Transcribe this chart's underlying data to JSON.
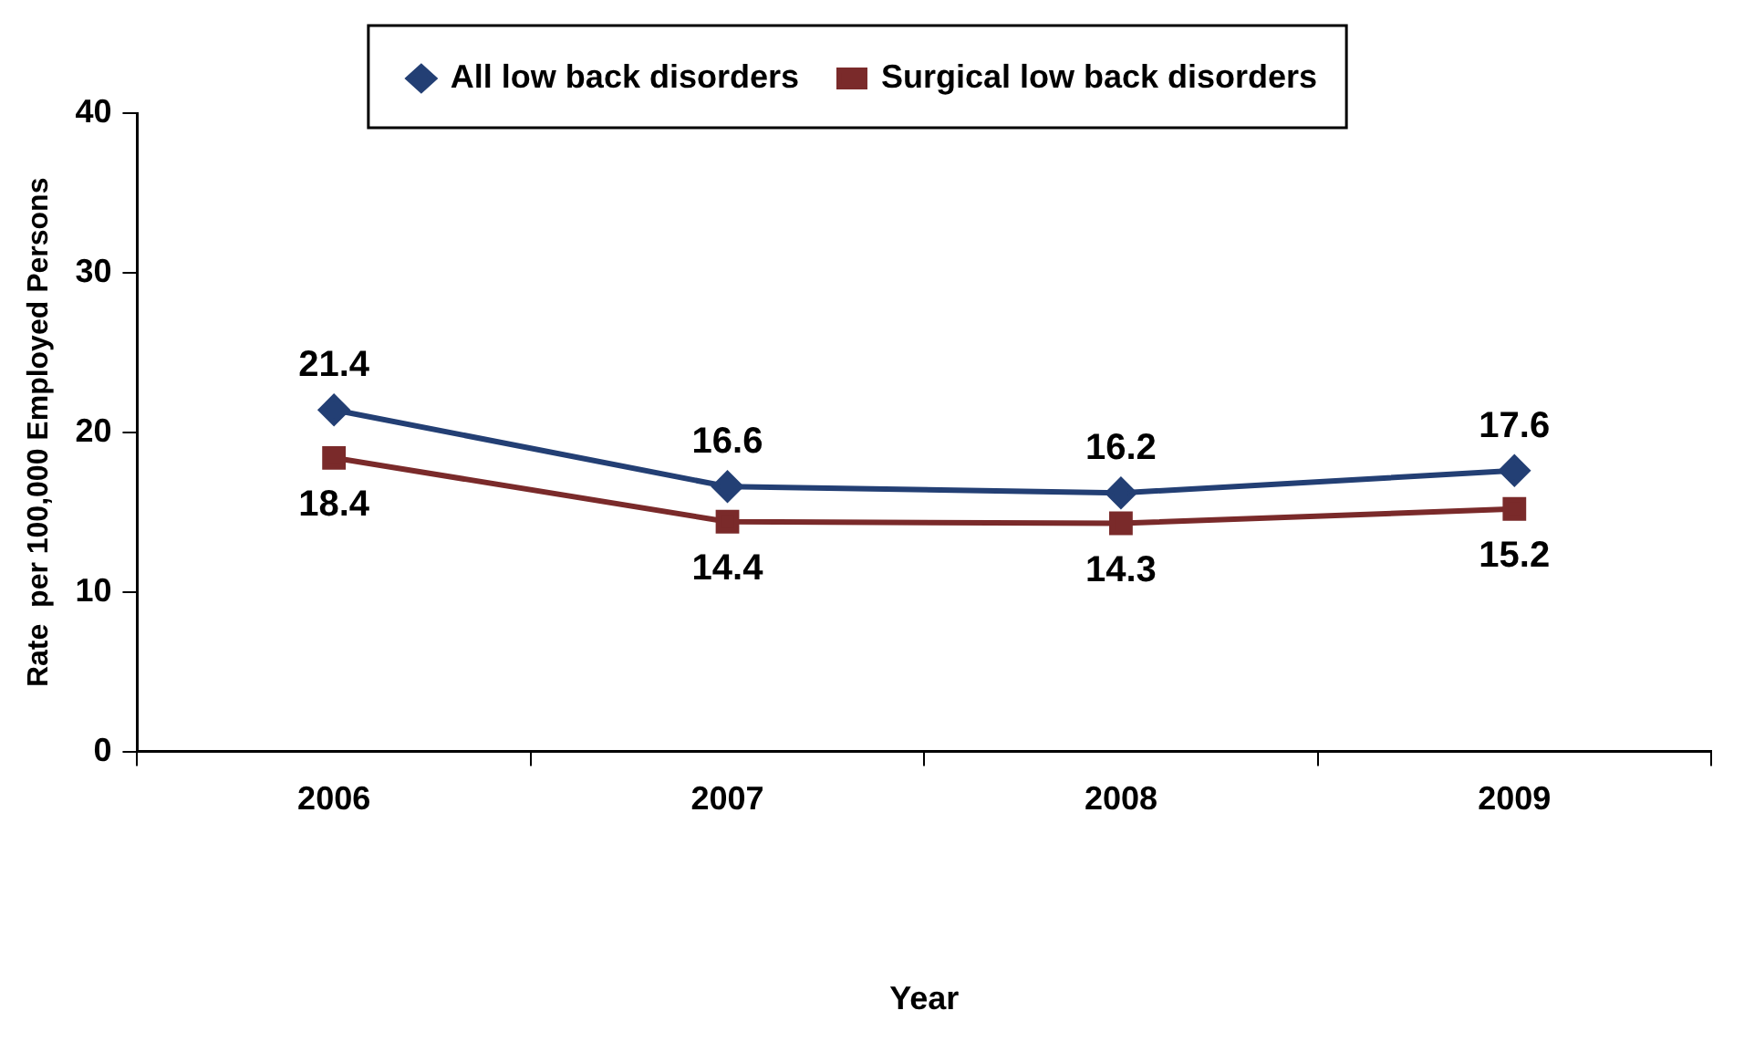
{
  "chart_data": {
    "type": "line",
    "xlabel": "Year",
    "ylabel": "Rate  per 100,000 Employed Persons",
    "categories": [
      "2006",
      "2007",
      "2008",
      "2009"
    ],
    "series": [
      {
        "name": "All low back disorders",
        "color": "#233f74",
        "marker": "diamond",
        "values": [
          21.4,
          16.6,
          16.2,
          17.6
        ]
      },
      {
        "name": "Surgical low back disorders",
        "color": "#7a2a2a",
        "marker": "square",
        "values": [
          18.4,
          14.4,
          14.3,
          15.2
        ]
      }
    ],
    "ylim": [
      0,
      40
    ],
    "yticks": [
      0,
      10,
      20,
      30,
      40
    ],
    "grid": false,
    "legend": "top",
    "line_style": "solid",
    "data_labels": true
  }
}
